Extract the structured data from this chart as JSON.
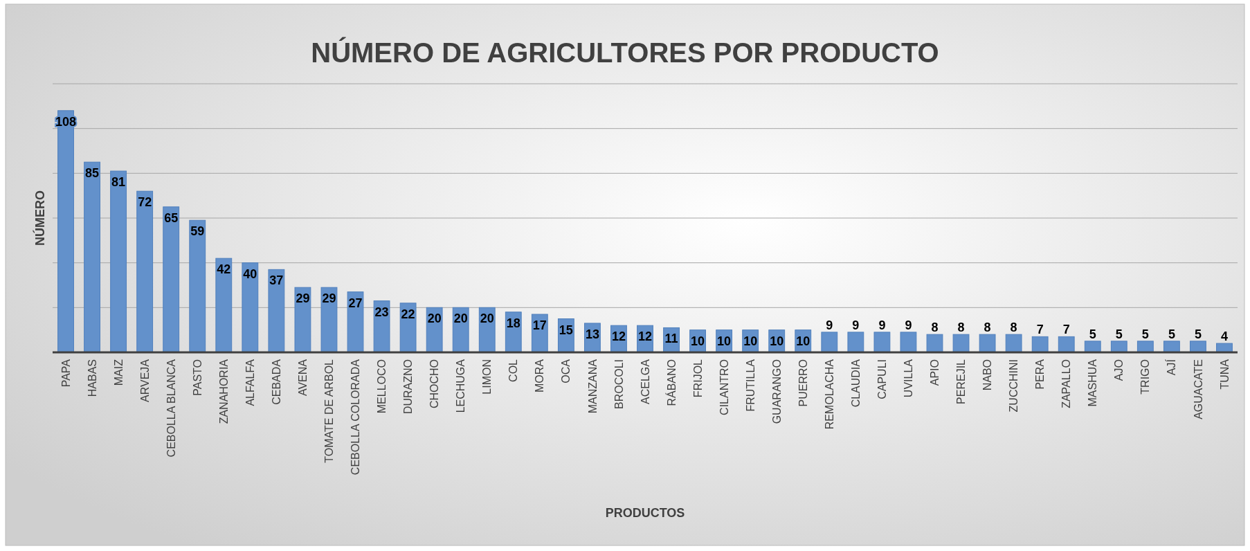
{
  "chart_data": {
    "type": "bar",
    "title": "NÚMERO DE AGRICULTORES POR PRODUCTO",
    "xlabel": "PRODUCTOS",
    "ylabel": "NÚMERO",
    "categories": [
      "PAPA",
      "HABAS",
      "MAIZ",
      "ARVEJA",
      "CEBOLLA BLANCA",
      "PASTO",
      "ZANAHORIA",
      "ALFALFA",
      "CEBADA",
      "AVENA",
      "TOMATE DE ARBOL",
      "CEBOLLA COLORADA",
      "MELLOCO",
      "DURAZNO",
      "CHOCHO",
      "LECHUGA",
      "LIMON",
      "COL",
      "MORA",
      "OCA",
      "MANZANA",
      "BROCOLI",
      "ACELGA",
      "RÁBANO",
      "FRIJOL",
      "CILANTRO",
      "FRUTILLA",
      "GUARANGO",
      "PUERRO",
      "REMOLACHA",
      "CLAUDIA",
      "CAPULI",
      "UVILLA",
      "APIO",
      "PEREJIL",
      "NABO",
      "ZUCCHINI",
      "PERA",
      "ZAPALLO",
      "MASHUA",
      "AJO",
      "TRIGO",
      "AJÍ",
      "AGUACATE",
      "TUNA"
    ],
    "values": [
      108,
      85,
      81,
      72,
      65,
      59,
      42,
      40,
      37,
      29,
      29,
      27,
      23,
      22,
      20,
      20,
      20,
      18,
      17,
      15,
      13,
      12,
      12,
      11,
      10,
      10,
      10,
      10,
      10,
      9,
      9,
      9,
      9,
      8,
      8,
      8,
      8,
      7,
      7,
      5,
      5,
      5,
      5,
      5,
      4
    ],
    "color": "#6391cb",
    "data_labels": true,
    "ylim": [
      0,
      120
    ],
    "yticks": [
      {
        "value": 0,
        "label": null
      },
      {
        "value": 20,
        "label": null
      },
      {
        "value": 40,
        "label": null
      },
      {
        "value": 60,
        "label": null
      },
      {
        "value": 80,
        "label": null
      },
      {
        "value": 100,
        "label": null
      },
      {
        "value": 120,
        "label": null
      }
    ],
    "tick_labels": "x",
    "grid": "y"
  }
}
